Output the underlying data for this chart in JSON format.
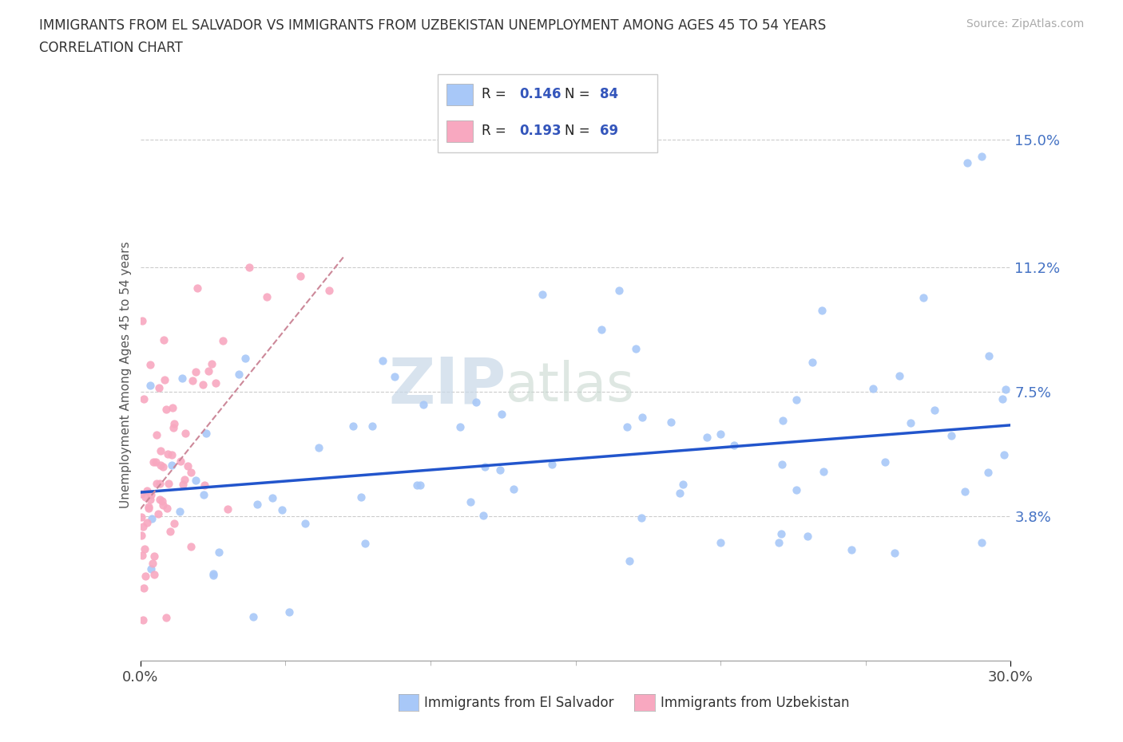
{
  "title_line1": "IMMIGRANTS FROM EL SALVADOR VS IMMIGRANTS FROM UZBEKISTAN UNEMPLOYMENT AMONG AGES 45 TO 54 YEARS",
  "title_line2": "CORRELATION CHART",
  "source_text": "Source: ZipAtlas.com",
  "ylabel": "Unemployment Among Ages 45 to 54 years",
  "xlim": [
    0.0,
    0.3
  ],
  "ylim": [
    -0.005,
    0.165
  ],
  "yticks": [
    0.038,
    0.075,
    0.112,
    0.15
  ],
  "ytick_labels": [
    "3.8%",
    "7.5%",
    "11.2%",
    "15.0%"
  ],
  "xticks": [
    0.0,
    0.3
  ],
  "xtick_labels": [
    "0.0%",
    "30.0%"
  ],
  "watermark_zip": "ZIP",
  "watermark_atlas": "atlas",
  "el_salvador_color": "#a8c8f8",
  "uzbekistan_color": "#f8a8c0",
  "el_salvador_line_color": "#2255cc",
  "uzbekistan_line_color": "#cc8899",
  "el_salvador_R": 0.146,
  "el_salvador_N": 84,
  "uzbekistan_R": 0.193,
  "uzbekistan_N": 69,
  "legend_label_1": "Immigrants from El Salvador",
  "legend_label_2": "Immigrants from Uzbekistan",
  "el_trendline": [
    0.0,
    0.045,
    0.3,
    0.065
  ],
  "uzb_trendline": [
    0.0,
    0.04,
    0.07,
    0.115
  ]
}
